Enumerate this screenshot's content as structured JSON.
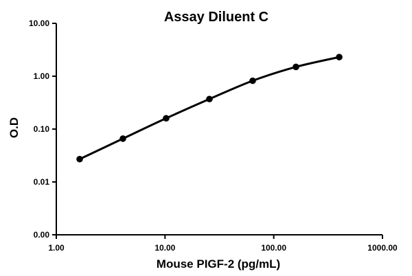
{
  "chart_data": {
    "type": "line",
    "title": "Assay Diluent C",
    "xlabel": "Mouse PIGF-2 (pg/mL)",
    "ylabel": "O.D",
    "x_scale": "log",
    "y_scale": "log",
    "xlim": [
      1,
      1000
    ],
    "ylim": [
      0.001,
      10
    ],
    "x_ticks": [
      1,
      10,
      100,
      1000
    ],
    "y_ticks": [
      0.001,
      0.01,
      0.1,
      1,
      10
    ],
    "x_tick_labels": [
      "1.00",
      "10.00",
      "100.00",
      "1000.00"
    ],
    "y_tick_labels": [
      "0.00",
      "0.01",
      "0.10",
      "1.00",
      "10.00"
    ],
    "grid": false,
    "legend": "none",
    "series": [
      {
        "x": [
          1.64,
          4.1,
          10.24,
          25.6,
          64,
          160,
          400
        ],
        "y": [
          0.027,
          0.066,
          0.16,
          0.37,
          0.82,
          1.5,
          2.3
        ],
        "color": "#000000",
        "marker": "circle"
      }
    ]
  }
}
